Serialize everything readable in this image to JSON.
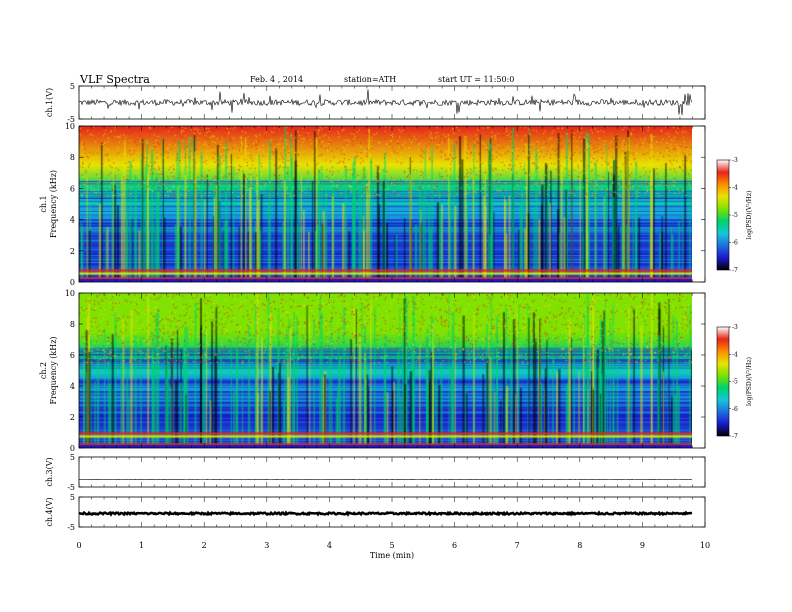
{
  "header": {
    "title": "VLF Spectra",
    "date": "Feb. 4 , 2014",
    "station": "station=ATH",
    "start": "start UT = 11:50:0"
  },
  "chart_data": [
    {
      "type": "line",
      "panel": "waveform",
      "ylabel": "ch.1(V)",
      "ylim": [
        -5,
        5
      ],
      "yticks": [
        "5",
        "-5"
      ],
      "x_range": [
        0,
        9.8
      ],
      "baseline": 0,
      "noise_amplitude": 0.9,
      "spike_amplitude": 3.5
    },
    {
      "type": "heatmap",
      "panel": "spectrogram",
      "ylabel": "Frequency (kHz)",
      "channel_label": "ch.1",
      "ylim": [
        0,
        10
      ],
      "yticks": [
        "0",
        "2",
        "4",
        "6",
        "8",
        "10"
      ],
      "x_range": [
        0,
        9.8
      ],
      "z_label": "log(PSD)(V²/Hz)",
      "z_range": [
        -7,
        -3
      ],
      "z_ticks": [
        "-3",
        "-4",
        "-5",
        "-6",
        "-7"
      ],
      "colormap": [
        "#000000",
        "#1a1acc",
        "#1f6fe0",
        "#14c8d8",
        "#00d36a",
        "#7fe200",
        "#e8e400",
        "#ff8c00",
        "#e6251b",
        "#ffffff"
      ],
      "low_band_khz": [
        0.3,
        0.8
      ],
      "high_activity_above_khz": 6.5
    },
    {
      "type": "heatmap",
      "panel": "spectrogram",
      "ylabel": "Frequency (kHz)",
      "channel_label": "ch.2",
      "ylim": [
        0,
        10
      ],
      "yticks": [
        "0",
        "2",
        "4",
        "6",
        "8",
        "10"
      ],
      "x_range": [
        0,
        9.8
      ],
      "z_label": "log(PSD)(V²/Hz)",
      "z_range": [
        -7,
        -3
      ],
      "z_ticks": [
        "-3",
        "-4",
        "-5",
        "-6",
        "-7"
      ],
      "low_band_khz": [
        0.3,
        1.0
      ],
      "high_activity_above_khz": 6.5
    },
    {
      "type": "line",
      "panel": "waveform",
      "ylabel": "ch.3(V)",
      "ylim": [
        -5,
        5
      ],
      "yticks": [
        "5",
        "-5"
      ],
      "x_range": [
        0,
        9.8
      ],
      "baseline": -2.5,
      "noise_amplitude": 0.08
    },
    {
      "type": "line",
      "panel": "waveform",
      "ylabel": "ch.4(V)",
      "ylim": [
        -5,
        5
      ],
      "yticks": [
        "5",
        "-5"
      ],
      "x_range": [
        0,
        9.8
      ],
      "baseline": -0.5,
      "noise_amplitude": 0.3
    }
  ],
  "x_axis": {
    "label": "Time (min)",
    "xlim": [
      0,
      10
    ],
    "ticks": [
      "0",
      "1",
      "2",
      "3",
      "4",
      "5",
      "6",
      "7",
      "8",
      "9",
      "10"
    ]
  }
}
